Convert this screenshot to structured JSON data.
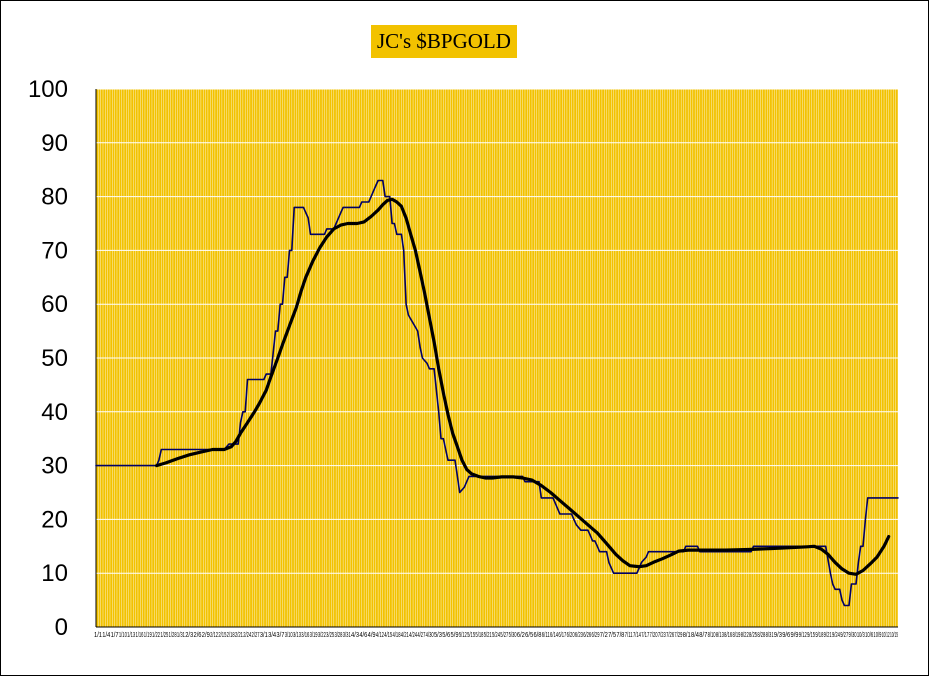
{
  "chart_data": {
    "type": "line",
    "title": "JC's $BPGOLD",
    "xlabel": "",
    "ylabel": "",
    "ylim": [
      0,
      100
    ],
    "yticks": [
      0,
      10,
      20,
      30,
      40,
      50,
      60,
      70,
      80,
      90,
      100
    ],
    "grid": true,
    "legend": "none",
    "colors": {
      "plot_background": "#f2c200",
      "gridline": "#ffffff",
      "raw_series": "#000066",
      "smoothed_series": "#000000",
      "title_background": "#f2c200"
    },
    "xticks": [
      "1/1",
      "1/4",
      "1/7",
      "1/10",
      "1/13",
      "1/16",
      "1/19",
      "1/22",
      "1/25",
      "1/28",
      "1/31",
      "2/3",
      "2/6",
      "2/9",
      "2/12",
      "2/15",
      "2/18",
      "2/21",
      "2/24",
      "2/27",
      "3/1",
      "3/4",
      "3/7",
      "3/10",
      "3/13",
      "3/16",
      "3/19",
      "3/22",
      "3/25",
      "3/28",
      "3/31",
      "4/3",
      "4/6",
      "4/9",
      "4/12",
      "4/15",
      "4/18",
      "4/21",
      "4/24",
      "4/27",
      "4/30",
      "5/3",
      "5/6",
      "5/9",
      "5/12",
      "5/15",
      "5/18",
      "5/21",
      "5/24",
      "5/27",
      "5/30",
      "6/2",
      "6/5",
      "6/8",
      "6/11",
      "6/14",
      "6/17",
      "6/20",
      "6/23",
      "6/26",
      "6/29",
      "7/2",
      "7/5",
      "7/8",
      "7/11",
      "7/14",
      "7/17",
      "7/20",
      "7/23",
      "7/26",
      "7/29",
      "8/1",
      "8/4",
      "8/7",
      "8/10",
      "8/13",
      "8/16",
      "8/19",
      "8/22",
      "8/25",
      "8/28",
      "8/31",
      "9/3",
      "9/6",
      "9/9",
      "9/12",
      "9/15",
      "9/18",
      "9/21",
      "9/24",
      "9/27",
      "9/30",
      "10/3",
      "10/6",
      "10/9",
      "10/12",
      "10/15"
    ],
    "series": [
      {
        "kind": "raw",
        "points": [
          [
            0,
            30
          ],
          [
            52,
            30
          ],
          [
            54,
            31
          ],
          [
            56,
            33
          ],
          [
            110,
            33
          ],
          [
            114,
            34
          ],
          [
            122,
            34
          ],
          [
            124,
            38
          ],
          [
            126,
            40
          ],
          [
            128,
            40
          ],
          [
            130,
            46
          ],
          [
            144,
            46
          ],
          [
            146,
            47
          ],
          [
            150,
            47
          ],
          [
            152,
            51
          ],
          [
            154,
            55
          ],
          [
            156,
            55
          ],
          [
            158,
            60
          ],
          [
            160,
            60
          ],
          [
            162,
            65
          ],
          [
            164,
            65
          ],
          [
            166,
            70
          ],
          [
            168,
            70
          ],
          [
            170,
            78
          ],
          [
            178,
            78
          ],
          [
            182,
            76
          ],
          [
            184,
            73
          ],
          [
            196,
            73
          ],
          [
            198,
            74
          ],
          [
            204,
            74
          ],
          [
            206,
            75
          ],
          [
            210,
            77
          ],
          [
            212,
            78
          ],
          [
            226,
            78
          ],
          [
            228,
            79
          ],
          [
            234,
            79
          ],
          [
            236,
            80
          ],
          [
            238,
            81
          ],
          [
            242,
            83
          ],
          [
            246,
            83
          ],
          [
            248,
            80
          ],
          [
            252,
            80
          ],
          [
            254,
            75
          ],
          [
            256,
            75
          ],
          [
            258,
            73
          ],
          [
            262,
            73
          ],
          [
            264,
            70
          ],
          [
            266,
            60
          ],
          [
            268,
            58
          ],
          [
            276,
            55
          ],
          [
            278,
            52
          ],
          [
            280,
            50
          ],
          [
            284,
            49
          ],
          [
            286,
            48
          ],
          [
            290,
            48
          ],
          [
            292,
            44
          ],
          [
            294,
            40
          ],
          [
            296,
            35
          ],
          [
            298,
            35
          ],
          [
            300,
            33
          ],
          [
            302,
            31
          ],
          [
            308,
            31
          ],
          [
            310,
            28
          ],
          [
            312,
            25
          ],
          [
            316,
            26
          ],
          [
            318,
            27
          ],
          [
            320,
            28
          ],
          [
            348,
            28
          ],
          [
            350,
            28
          ],
          [
            366,
            28
          ],
          [
            368,
            27
          ],
          [
            380,
            27
          ],
          [
            382,
            24
          ],
          [
            392,
            24
          ],
          [
            394,
            23
          ],
          [
            398,
            21
          ],
          [
            408,
            21
          ],
          [
            410,
            20
          ],
          [
            412,
            19
          ],
          [
            416,
            18
          ],
          [
            422,
            18
          ],
          [
            424,
            17
          ],
          [
            426,
            16
          ],
          [
            428,
            16
          ],
          [
            430,
            15
          ],
          [
            432,
            14
          ],
          [
            438,
            14
          ],
          [
            440,
            12
          ],
          [
            442,
            11
          ],
          [
            444,
            10
          ],
          [
            464,
            10
          ],
          [
            466,
            11
          ],
          [
            468,
            12
          ],
          [
            472,
            13
          ],
          [
            474,
            14
          ],
          [
            504,
            14
          ],
          [
            506,
            15
          ],
          [
            516,
            15
          ],
          [
            518,
            14
          ],
          [
            562,
            14
          ],
          [
            564,
            15
          ],
          [
            624,
            15
          ],
          [
            626,
            15
          ],
          [
            630,
            10
          ],
          [
            632,
            8
          ],
          [
            634,
            7
          ],
          [
            638,
            7
          ],
          [
            640,
            5
          ],
          [
            642,
            4
          ],
          [
            646,
            4
          ],
          [
            648,
            8
          ],
          [
            652,
            8
          ],
          [
            654,
            12
          ],
          [
            656,
            15
          ],
          [
            658,
            15
          ],
          [
            660,
            20
          ],
          [
            662,
            24
          ],
          [
            670,
            24
          ],
          [
            688,
            24
          ]
        ]
      },
      {
        "kind": "smoothed",
        "points": [
          [
            52,
            30
          ],
          [
            60,
            30.5
          ],
          [
            70,
            31.3
          ],
          [
            80,
            32
          ],
          [
            90,
            32.5
          ],
          [
            100,
            33
          ],
          [
            110,
            33
          ],
          [
            116,
            33.5
          ],
          [
            120,
            34.5
          ],
          [
            124,
            36
          ],
          [
            130,
            38
          ],
          [
            136,
            40
          ],
          [
            140,
            41.5
          ],
          [
            146,
            44
          ],
          [
            150,
            46.5
          ],
          [
            156,
            50
          ],
          [
            160,
            52.5
          ],
          [
            166,
            56
          ],
          [
            172,
            59.5
          ],
          [
            176,
            62.5
          ],
          [
            180,
            65
          ],
          [
            186,
            68
          ],
          [
            192,
            70.5
          ],
          [
            198,
            72.5
          ],
          [
            204,
            74
          ],
          [
            210,
            74.7
          ],
          [
            216,
            75
          ],
          [
            224,
            75
          ],
          [
            230,
            75.3
          ],
          [
            236,
            76.3
          ],
          [
            242,
            77.5
          ],
          [
            246,
            78.5
          ],
          [
            250,
            79.3
          ],
          [
            254,
            79.5
          ],
          [
            258,
            79
          ],
          [
            262,
            78.2
          ],
          [
            266,
            76
          ],
          [
            270,
            73
          ],
          [
            274,
            70
          ],
          [
            278,
            66
          ],
          [
            282,
            62
          ],
          [
            286,
            57.5
          ],
          [
            290,
            53
          ],
          [
            294,
            48
          ],
          [
            298,
            43.5
          ],
          [
            302,
            39.5
          ],
          [
            306,
            36
          ],
          [
            310,
            33.5
          ],
          [
            314,
            31
          ],
          [
            318,
            29.3
          ],
          [
            322,
            28.5
          ],
          [
            328,
            28
          ],
          [
            334,
            27.7
          ],
          [
            340,
            27.7
          ],
          [
            348,
            27.9
          ],
          [
            358,
            27.9
          ],
          [
            366,
            27.7
          ],
          [
            374,
            27.3
          ],
          [
            382,
            26.3
          ],
          [
            390,
            25
          ],
          [
            398,
            23.5
          ],
          [
            406,
            22
          ],
          [
            414,
            20.5
          ],
          [
            422,
            19
          ],
          [
            430,
            17.5
          ],
          [
            438,
            15.5
          ],
          [
            446,
            13.5
          ],
          [
            452,
            12.3
          ],
          [
            458,
            11.4
          ],
          [
            466,
            11.2
          ],
          [
            472,
            11.4
          ],
          [
            478,
            12
          ],
          [
            486,
            12.7
          ],
          [
            494,
            13.5
          ],
          [
            500,
            14.1
          ],
          [
            508,
            14.3
          ],
          [
            520,
            14.3
          ],
          [
            540,
            14.3
          ],
          [
            560,
            14.4
          ],
          [
            580,
            14.6
          ],
          [
            600,
            14.8
          ],
          [
            610,
            14.9
          ],
          [
            616,
            15
          ],
          [
            622,
            14.5
          ],
          [
            628,
            13.5
          ],
          [
            634,
            12
          ],
          [
            640,
            10.8
          ],
          [
            646,
            10
          ],
          [
            652,
            9.8
          ],
          [
            658,
            10.5
          ],
          [
            664,
            11.7
          ],
          [
            670,
            13
          ],
          [
            676,
            15
          ],
          [
            680,
            16.8
          ]
        ]
      }
    ]
  }
}
